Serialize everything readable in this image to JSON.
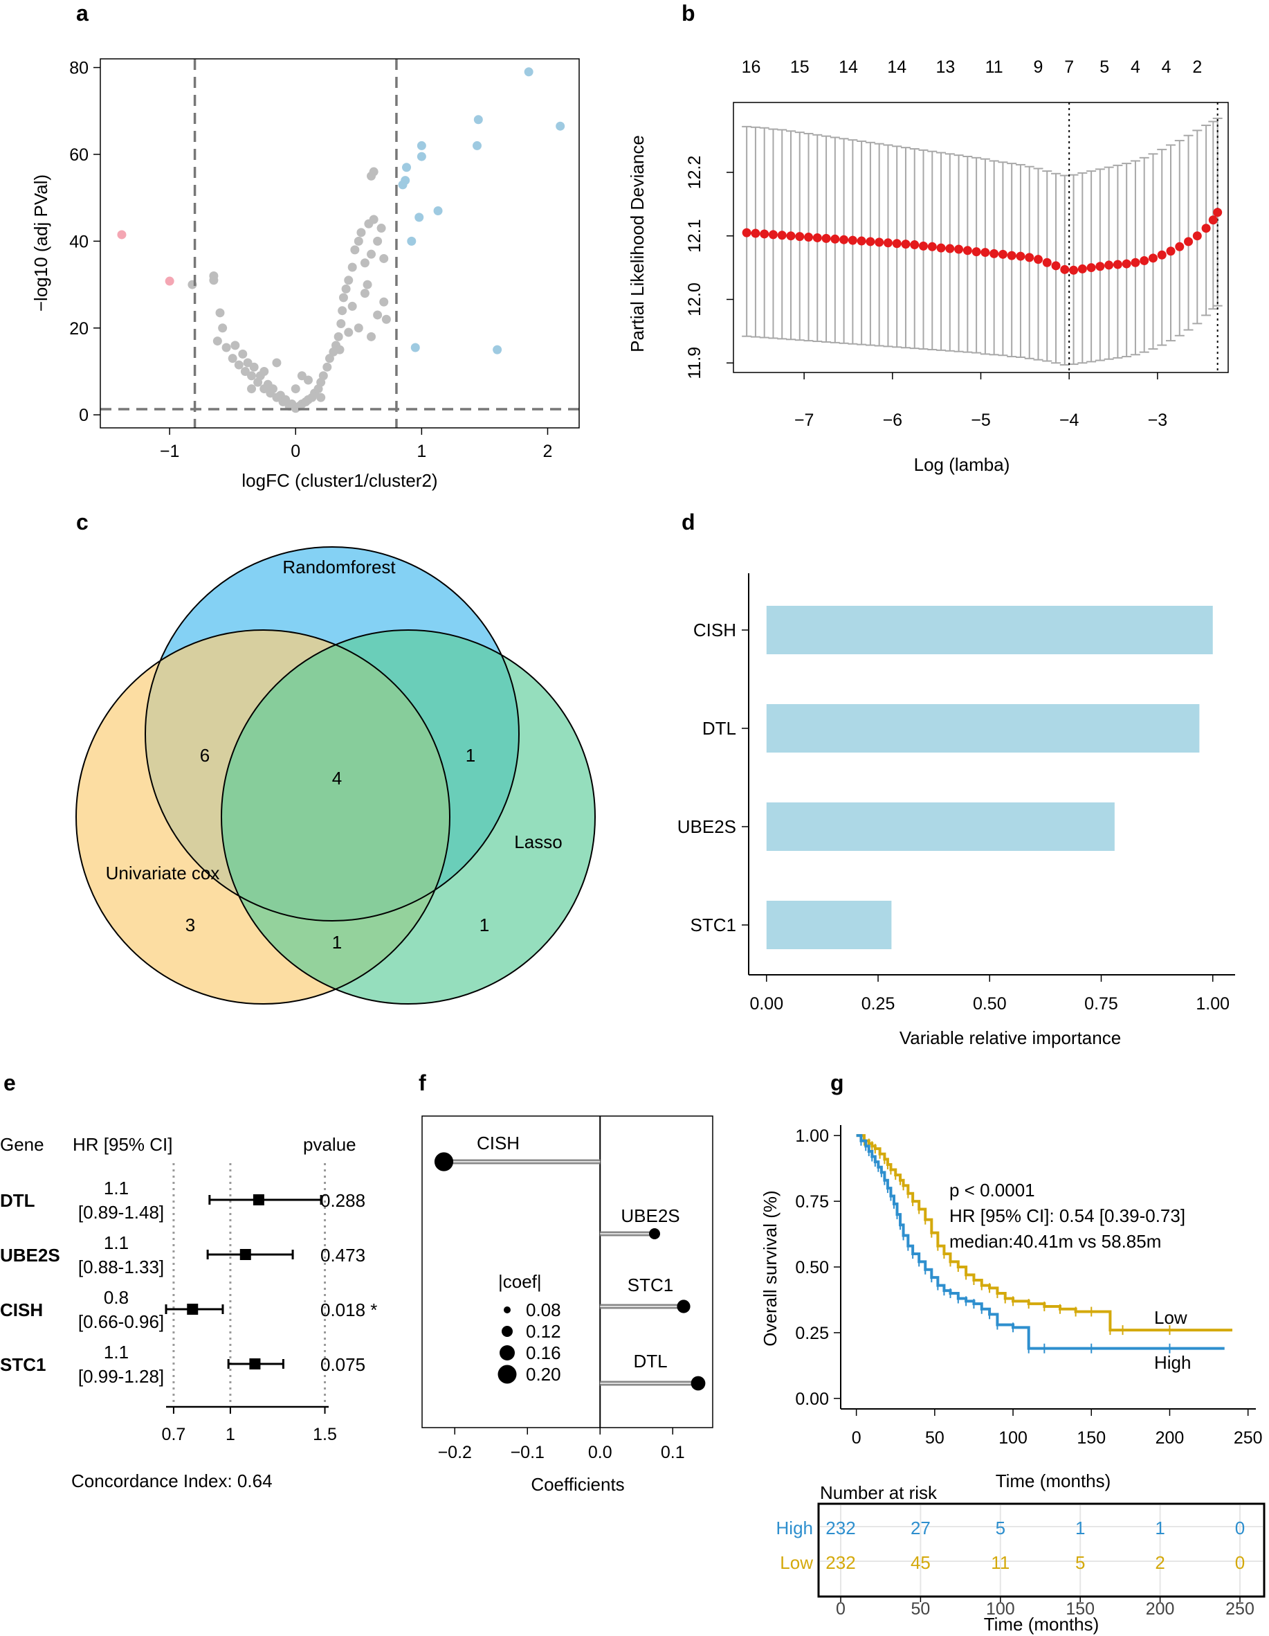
{
  "panel_labels": [
    "a",
    "b",
    "c",
    "d",
    "e",
    "f",
    "g"
  ],
  "colors": {
    "grey": "#bdbdbd",
    "blue": "#9ecae1",
    "pink": "#f4a6b3",
    "red": "#e41a1c",
    "bar": "#add8e6",
    "teal_low": "#d4a90c",
    "teal_high": "#2e8fce",
    "venn_blue": "#5bc1f0",
    "venn_yellow": "#fbcf7b",
    "venn_green": "#5ccd9a"
  },
  "chart_data": [
    {
      "id": "a",
      "type": "scatter",
      "title": "",
      "xlabel": "logFC (cluster1/cluster2)",
      "ylabel": "−log10 (adj PVal)",
      "xlim": [
        -1.55,
        2.25
      ],
      "ylim": [
        -3,
        82
      ],
      "xticks": [
        -1,
        0,
        1,
        2
      ],
      "yticks": [
        0,
        20,
        40,
        60,
        80
      ],
      "thresholds": {
        "x": [
          -0.8,
          0.8
        ],
        "y": 1.3
      },
      "series": [
        {
          "name": "Down",
          "color": "#f4a6b3",
          "points": [
            [
              -1.38,
              41.5
            ],
            [
              -1.0,
              30.8
            ]
          ]
        },
        {
          "name": "Up",
          "color": "#9ecae1",
          "points": [
            [
              1.85,
              79
            ],
            [
              2.1,
              66.5
            ],
            [
              1.45,
              68
            ],
            [
              1.44,
              62
            ],
            [
              1.0,
              62
            ],
            [
              1.0,
              59.5
            ],
            [
              0.88,
              57
            ],
            [
              0.87,
              54
            ],
            [
              0.85,
              53
            ],
            [
              1.13,
              47
            ],
            [
              0.98,
              45.5
            ],
            [
              0.92,
              40
            ],
            [
              0.95,
              15.5
            ],
            [
              1.6,
              15
            ]
          ]
        },
        {
          "name": "NS",
          "color": "#bdbdbd",
          "points": [
            [
              -0.82,
              30
            ],
            [
              -0.65,
              31
            ],
            [
              -0.65,
              32
            ],
            [
              -0.6,
              23.5
            ],
            [
              -0.58,
              20
            ],
            [
              -0.62,
              17
            ],
            [
              -0.55,
              15.5
            ],
            [
              -0.5,
              13
            ],
            [
              -0.48,
              16
            ],
            [
              -0.45,
              11.5
            ],
            [
              -0.42,
              14
            ],
            [
              -0.4,
              10
            ],
            [
              -0.38,
              12
            ],
            [
              -0.35,
              9
            ],
            [
              -0.33,
              11
            ],
            [
              -0.3,
              7.5
            ],
            [
              -0.28,
              9
            ],
            [
              -0.25,
              6
            ],
            [
              -0.22,
              7
            ],
            [
              -0.2,
              5
            ],
            [
              -0.18,
              6
            ],
            [
              -0.15,
              4
            ],
            [
              -0.12,
              4.5
            ],
            [
              -0.1,
              3
            ],
            [
              -0.08,
              3.5
            ],
            [
              -0.05,
              2
            ],
            [
              -0.03,
              2.5
            ],
            [
              0.0,
              1.5
            ],
            [
              0.03,
              2
            ],
            [
              0.05,
              2.5
            ],
            [
              0.08,
              3
            ],
            [
              0.1,
              3.5
            ],
            [
              0.13,
              4
            ],
            [
              0.15,
              5
            ],
            [
              0.18,
              6
            ],
            [
              0.2,
              7.5
            ],
            [
              0.22,
              9
            ],
            [
              0.25,
              11
            ],
            [
              0.27,
              13
            ],
            [
              0.3,
              14.5
            ],
            [
              0.32,
              16
            ],
            [
              0.34,
              18
            ],
            [
              0.36,
              21
            ],
            [
              0.37,
              24
            ],
            [
              0.38,
              27
            ],
            [
              0.4,
              29
            ],
            [
              0.42,
              31
            ],
            [
              0.45,
              34
            ],
            [
              0.47,
              38
            ],
            [
              0.5,
              40
            ],
            [
              0.52,
              42
            ],
            [
              0.55,
              35
            ],
            [
              0.58,
              44
            ],
            [
              0.6,
              37
            ],
            [
              0.62,
              45
            ],
            [
              0.65,
              40
            ],
            [
              0.68,
              43
            ],
            [
              0.7,
              36
            ],
            [
              0.6,
              55
            ],
            [
              0.62,
              56
            ],
            [
              0.57,
              30
            ],
            [
              0.7,
              26
            ],
            [
              0.72,
              22
            ],
            [
              0.45,
              25
            ],
            [
              0.5,
              20
            ],
            [
              0.42,
              19
            ],
            [
              0.35,
              15
            ],
            [
              0.55,
              28
            ],
            [
              0.65,
              23
            ],
            [
              0.6,
              18
            ],
            [
              -0.15,
              12
            ],
            [
              0.0,
              6
            ],
            [
              0.1,
              8
            ],
            [
              -0.25,
              10
            ],
            [
              0.2,
              4
            ],
            [
              -0.35,
              6
            ],
            [
              0.05,
              9
            ]
          ]
        }
      ]
    },
    {
      "id": "b",
      "type": "line",
      "title": "",
      "xlabel": "Log (lamba)",
      "ylabel": "Partial Likelihood Deviance",
      "xlim": [
        -7.8,
        -2.2
      ],
      "ylim": [
        11.885,
        12.31
      ],
      "xticks": [
        -7,
        -6,
        -5,
        -4,
        -3
      ],
      "yticks": [
        11.9,
        12.0,
        12.1,
        12.2
      ],
      "top_axis_labels": [
        "16",
        "15",
        "14",
        "14",
        "13",
        "11",
        "9",
        "7",
        "5",
        "4",
        "4",
        "2"
      ],
      "top_axis_x": [
        -7.6,
        -7.05,
        -6.5,
        -5.95,
        -5.4,
        -4.85,
        -4.35,
        -4.0,
        -3.6,
        -3.25,
        -2.9,
        -2.55
      ],
      "vlines": [
        -4.0,
        -2.32
      ],
      "series": [
        {
          "name": "cv deviance",
          "color": "#e41a1c",
          "x": [
            -7.65,
            -7.55,
            -7.45,
            -7.35,
            -7.25,
            -7.15,
            -7.05,
            -6.95,
            -6.85,
            -6.75,
            -6.65,
            -6.55,
            -6.45,
            -6.35,
            -6.25,
            -6.15,
            -6.05,
            -5.95,
            -5.85,
            -5.75,
            -5.65,
            -5.55,
            -5.45,
            -5.35,
            -5.25,
            -5.15,
            -5.05,
            -4.95,
            -4.85,
            -4.75,
            -4.65,
            -4.55,
            -4.45,
            -4.35,
            -4.25,
            -4.15,
            -4.05,
            -3.95,
            -3.85,
            -3.75,
            -3.65,
            -3.55,
            -3.45,
            -3.35,
            -3.25,
            -3.15,
            -3.05,
            -2.95,
            -2.85,
            -2.75,
            -2.65,
            -2.55,
            -2.45,
            -2.37,
            -2.32
          ],
          "y": [
            12.105,
            12.104,
            12.103,
            12.102,
            12.101,
            12.1,
            12.099,
            12.098,
            12.097,
            12.096,
            12.095,
            12.094,
            12.093,
            12.092,
            12.091,
            12.09,
            12.089,
            12.088,
            12.087,
            12.086,
            12.084,
            12.083,
            12.081,
            12.08,
            12.079,
            12.077,
            12.075,
            12.074,
            12.072,
            12.071,
            12.069,
            12.068,
            12.066,
            12.063,
            12.058,
            12.053,
            12.047,
            12.046,
            12.048,
            12.05,
            12.052,
            12.054,
            12.055,
            12.056,
            12.058,
            12.061,
            12.065,
            12.07,
            12.076,
            12.083,
            12.091,
            12.1,
            12.112,
            12.125,
            12.137
          ],
          "upper": [
            12.272,
            12.271,
            12.27,
            12.268,
            12.267,
            12.265,
            12.263,
            12.261,
            12.259,
            12.257,
            12.255,
            12.253,
            12.251,
            12.249,
            12.247,
            12.245,
            12.243,
            12.241,
            12.239,
            12.237,
            12.235,
            12.233,
            12.231,
            12.229,
            12.227,
            12.225,
            12.223,
            12.221,
            12.218,
            12.216,
            12.214,
            12.212,
            12.209,
            12.206,
            12.202,
            12.198,
            12.195,
            12.196,
            12.199,
            12.202,
            12.205,
            12.208,
            12.211,
            12.214,
            12.218,
            12.223,
            12.229,
            12.236,
            12.243,
            12.25,
            12.258,
            12.266,
            12.274,
            12.28,
            12.285
          ],
          "lower": [
            11.942,
            11.941,
            11.94,
            11.939,
            11.938,
            11.937,
            11.936,
            11.935,
            11.934,
            11.933,
            11.932,
            11.931,
            11.93,
            11.929,
            11.928,
            11.927,
            11.926,
            11.925,
            11.924,
            11.923,
            11.922,
            11.921,
            11.92,
            11.919,
            11.918,
            11.917,
            11.916,
            11.914,
            11.913,
            11.912,
            11.91,
            11.909,
            11.907,
            11.905,
            11.903,
            11.9,
            11.897,
            11.898,
            11.9,
            11.902,
            11.904,
            11.906,
            11.908,
            11.91,
            11.913,
            11.917,
            11.922,
            11.928,
            11.935,
            11.943,
            11.952,
            11.962,
            11.975,
            11.985,
            11.99
          ]
        }
      ]
    },
    {
      "id": "c",
      "type": "venn",
      "sets": [
        "Randomforest",
        "Univariate cox",
        "Lasso"
      ],
      "regions": {
        "rf_only": "",
        "uc_only": "3",
        "lasso_only": "1",
        "rf_uc": "6",
        "rf_lasso": "1",
        "uc_lasso": "1",
        "all": "4"
      }
    },
    {
      "id": "d",
      "type": "bar",
      "orientation": "horizontal",
      "categories": [
        "CISH",
        "DTL",
        "UBE2S",
        "STC1"
      ],
      "values": [
        1.0,
        0.97,
        0.78,
        0.28
      ],
      "xlabel": "Variable relative importance",
      "xlim": [
        -0.04,
        1.05
      ],
      "xticks": [
        "0.00",
        "0.25",
        "0.50",
        "0.75",
        "1.00"
      ],
      "xtick_values": [
        0,
        0.25,
        0.5,
        0.75,
        1.0
      ]
    },
    {
      "id": "e",
      "type": "forest",
      "headers": {
        "gene": "Gene",
        "hr": "HR [95% CI]",
        "p": "pvalue"
      },
      "rows": [
        {
          "gene": "DTL",
          "hr": "1.1",
          "ci": "[0.89-1.48]",
          "p": "0.288",
          "est": 1.15,
          "lo": 0.89,
          "hi": 1.48
        },
        {
          "gene": "UBE2S",
          "hr": "1.1",
          "ci": "[0.88-1.33]",
          "p": "0.473",
          "est": 1.08,
          "lo": 0.88,
          "hi": 1.33
        },
        {
          "gene": "CISH",
          "hr": "0.8",
          "ci": "[0.66-0.96]",
          "p": "0.018 *",
          "est": 0.8,
          "lo": 0.66,
          "hi": 0.96
        },
        {
          "gene": "STC1",
          "hr": "1.1",
          "ci": "[0.99-1.28]",
          "p": "0.075",
          "est": 1.13,
          "lo": 0.99,
          "hi": 1.28
        }
      ],
      "xticks": [
        "0.7",
        "1",
        "1.5"
      ],
      "xtick_values": [
        0.7,
        1.0,
        1.5
      ],
      "xlim": [
        0.66,
        1.52
      ],
      "footer": "Concordance Index: 0.64"
    },
    {
      "id": "f",
      "type": "lollipop",
      "xlabel": "Coefficients",
      "xlim": [
        -0.245,
        0.155
      ],
      "xticks": [
        "-0.2",
        "-0.1",
        "0.0",
        "0.1"
      ],
      "xtick_values": [
        -0.2,
        -0.1,
        0.0,
        0.1
      ],
      "items": [
        {
          "gene": "CISH",
          "coef": -0.215
        },
        {
          "gene": "UBE2S",
          "coef": 0.075
        },
        {
          "gene": "STC1",
          "coef": 0.115
        },
        {
          "gene": "DTL",
          "coef": 0.135
        }
      ],
      "legend_title": "|coef|",
      "legend_items": [
        "0.08",
        "0.12",
        "0.16",
        "0.20"
      ]
    },
    {
      "id": "g",
      "type": "survival",
      "xlabel": "Time (months)",
      "ylabel": "Overall survival (%)",
      "xlim": [
        -10,
        255
      ],
      "ylim": [
        -0.04,
        1.04
      ],
      "xticks": [
        0,
        50,
        100,
        150,
        200,
        250
      ],
      "yticks": [
        "0.00",
        "0.25",
        "0.50",
        "0.75",
        "1.00"
      ],
      "ytick_values": [
        0,
        0.25,
        0.5,
        0.75,
        1.0
      ],
      "annotations": [
        "p < 0.0001",
        "HR [95% CI]: 0.54 [0.39-0.73]",
        "median:40.41m vs 58.85m"
      ],
      "series": [
        {
          "name": "Low",
          "color": "#d4a90c",
          "time": [
            0,
            5,
            8,
            10,
            12,
            15,
            18,
            20,
            22,
            25,
            28,
            30,
            33,
            36,
            40,
            44,
            48,
            52,
            56,
            60,
            65,
            70,
            75,
            80,
            85,
            90,
            95,
            100,
            110,
            120,
            130,
            140,
            150,
            162,
            170,
            200,
            240
          ],
          "surv": [
            1.0,
            0.98,
            0.97,
            0.96,
            0.95,
            0.93,
            0.91,
            0.89,
            0.87,
            0.85,
            0.83,
            0.81,
            0.78,
            0.75,
            0.72,
            0.68,
            0.63,
            0.58,
            0.55,
            0.52,
            0.5,
            0.47,
            0.45,
            0.43,
            0.42,
            0.4,
            0.38,
            0.37,
            0.36,
            0.35,
            0.34,
            0.33,
            0.33,
            0.26,
            0.26,
            0.26,
            0.26
          ]
        },
        {
          "name": "High",
          "color": "#2e8fce",
          "time": [
            0,
            3,
            6,
            8,
            10,
            12,
            14,
            16,
            18,
            20,
            22,
            24,
            26,
            28,
            30,
            33,
            36,
            40,
            44,
            48,
            52,
            56,
            60,
            65,
            70,
            75,
            80,
            85,
            90,
            100,
            110,
            120,
            150,
            200,
            235
          ],
          "surv": [
            1.0,
            0.98,
            0.96,
            0.94,
            0.92,
            0.9,
            0.88,
            0.86,
            0.83,
            0.8,
            0.77,
            0.74,
            0.7,
            0.66,
            0.62,
            0.58,
            0.55,
            0.52,
            0.49,
            0.46,
            0.43,
            0.41,
            0.4,
            0.38,
            0.37,
            0.36,
            0.34,
            0.32,
            0.28,
            0.27,
            0.19,
            0.19,
            0.19,
            0.19,
            0.19
          ]
        }
      ],
      "risk_table": {
        "title": "Number at risk",
        "rows": [
          {
            "name": "High",
            "color": "#2e8fce",
            "values": [
              "232",
              "27",
              "5",
              "1",
              "1",
              "0"
            ]
          },
          {
            "name": "Low",
            "color": "#d4a90c",
            "values": [
              "232",
              "45",
              "11",
              "5",
              "2",
              "0"
            ]
          }
        ],
        "xticks": [
          "0",
          "50",
          "100",
          "150",
          "200",
          "250"
        ],
        "xlabel": "Time (months)"
      }
    }
  ]
}
